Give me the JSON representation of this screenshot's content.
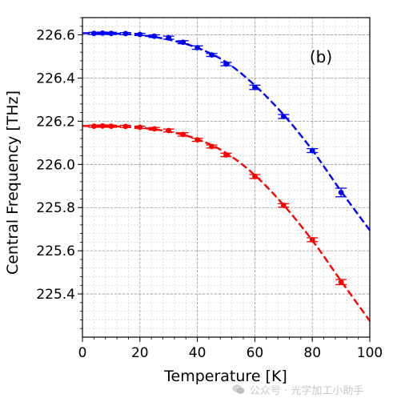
{
  "chart_data": {
    "type": "scatter",
    "panel_label": "(b)",
    "xlabel": "Temperature [K]",
    "ylabel": "Central Frequency [THz]",
    "xlim": [
      0,
      100
    ],
    "ylim": [
      225.2,
      226.68
    ],
    "xticks": [
      0,
      20,
      40,
      60,
      80,
      100
    ],
    "yticks": [
      225.4,
      225.6,
      225.8,
      226.0,
      226.2,
      226.4,
      226.6
    ],
    "grid": true,
    "minor_grid": true,
    "legend": "none",
    "series": [
      {
        "color": "#0000ff",
        "marker": "circle",
        "x": [
          4,
          7,
          10,
          15,
          20,
          25,
          30,
          35,
          40,
          45,
          50,
          60,
          70,
          80,
          90
        ],
        "y": [
          226.607,
          226.608,
          226.607,
          226.606,
          226.602,
          226.594,
          226.587,
          226.566,
          226.541,
          226.507,
          226.465,
          226.357,
          226.222,
          226.064,
          225.87
        ],
        "yerr": [
          0.005,
          0.005,
          0.005,
          0.005,
          0.005,
          0.006,
          0.007,
          0.007,
          0.008,
          0.007,
          0.008,
          0.01,
          0.009,
          0.009,
          0.02
        ],
        "fit_x": [
          0,
          10,
          20,
          30,
          40,
          50,
          60,
          70,
          80,
          90,
          100
        ],
        "fit_y": [
          226.608,
          226.607,
          226.599,
          226.578,
          226.54,
          226.474,
          226.366,
          226.23,
          226.066,
          225.876,
          225.695
        ]
      },
      {
        "color": "#ff0000",
        "marker": "circle",
        "x": [
          4,
          7,
          10,
          15,
          20,
          25,
          30,
          35,
          40,
          45,
          50,
          60,
          70,
          80,
          90
        ],
        "y": [
          226.177,
          226.178,
          226.177,
          226.176,
          226.172,
          226.165,
          226.157,
          226.139,
          226.114,
          226.083,
          226.044,
          225.944,
          225.81,
          225.651,
          225.455
        ],
        "yerr": [
          0.005,
          0.005,
          0.005,
          0.005,
          0.005,
          0.006,
          0.007,
          0.008,
          0.007,
          0.007,
          0.008,
          0.009,
          0.008,
          0.009,
          0.012
        ],
        "fit_x": [
          0,
          10,
          20,
          30,
          40,
          50,
          60,
          70,
          80,
          90,
          100
        ],
        "fit_y": [
          226.178,
          226.177,
          226.17,
          226.152,
          226.117,
          226.053,
          225.95,
          225.812,
          225.648,
          225.46,
          225.275
        ]
      }
    ]
  },
  "watermark": {
    "icon": "wechat-icon",
    "text": "公众号 · 光学加工小助手"
  }
}
